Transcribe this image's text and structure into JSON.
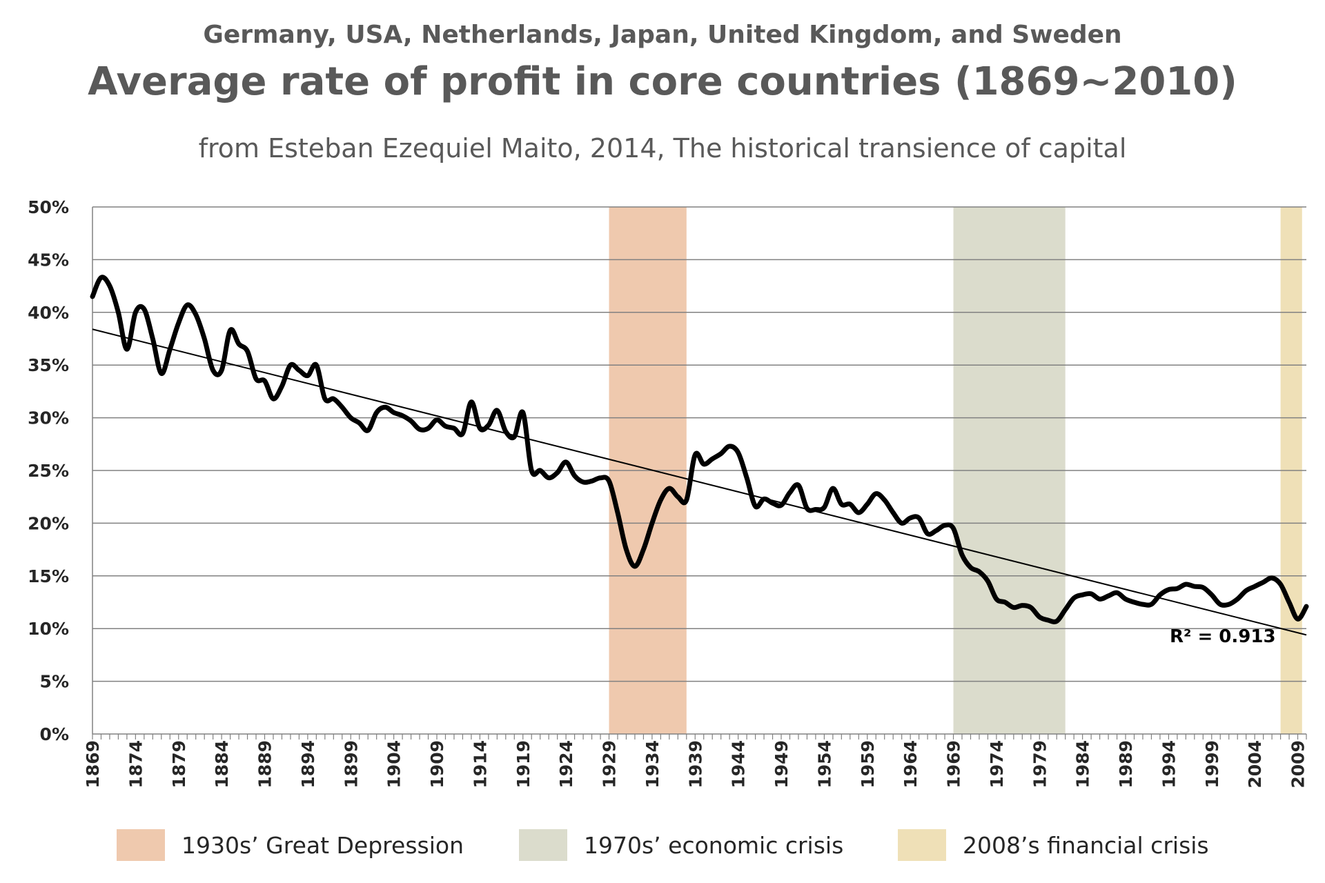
{
  "chart_data": {
    "type": "line",
    "supertitle": "Germany, USA, Netherlands, Japan, United Kingdom, and Sweden",
    "title": "Average rate of profit in core countries (1869~2010)",
    "subtitle": "from Esteban Ezequiel Maito, 2014, The historical transience of capital",
    "xlim": [
      1869,
      2010
    ],
    "ylim": [
      0,
      50
    ],
    "ytick_values": [
      0,
      5,
      10,
      15,
      20,
      25,
      30,
      35,
      40,
      45,
      50
    ],
    "ytick_labels": [
      "0%",
      "5%",
      "10%",
      "15%",
      "20%",
      "25%",
      "30%",
      "35%",
      "40%",
      "45%",
      "50%"
    ],
    "xtick_values": [
      1869,
      1874,
      1879,
      1884,
      1889,
      1894,
      1899,
      1904,
      1909,
      1914,
      1919,
      1924,
      1929,
      1934,
      1939,
      1944,
      1949,
      1954,
      1959,
      1964,
      1969,
      1974,
      1979,
      1984,
      1989,
      1994,
      1999,
      2004,
      2009
    ],
    "xtick_labels": [
      "1869",
      "1874",
      "1879",
      "1884",
      "1889",
      "1894",
      "1899",
      "1904",
      "1909",
      "1914",
      "1919",
      "1924",
      "1929",
      "1934",
      "1939",
      "1944",
      "1949",
      "1954",
      "1959",
      "1964",
      "1969",
      "1974",
      "1979",
      "1984",
      "1989",
      "1994",
      "1999",
      "2004",
      "2009"
    ],
    "grid": "horizontal",
    "legend_position": "bottom",
    "series": [
      {
        "color": "#000000",
        "x": [
          1869,
          1870,
          1871,
          1872,
          1873,
          1874,
          1875,
          1876,
          1877,
          1878,
          1879,
          1880,
          1881,
          1882,
          1883,
          1884,
          1885,
          1886,
          1887,
          1888,
          1889,
          1890,
          1891,
          1892,
          1893,
          1894,
          1895,
          1896,
          1897,
          1898,
          1899,
          1900,
          1901,
          1902,
          1903,
          1904,
          1905,
          1906,
          1907,
          1908,
          1909,
          1910,
          1911,
          1912,
          1913,
          1914,
          1915,
          1916,
          1917,
          1918,
          1919,
          1920,
          1921,
          1922,
          1923,
          1924,
          1925,
          1926,
          1927,
          1928,
          1929,
          1930,
          1931,
          1932,
          1933,
          1934,
          1935,
          1936,
          1937,
          1938,
          1939,
          1940,
          1941,
          1942,
          1943,
          1944,
          1945,
          1946,
          1947,
          1948,
          1949,
          1950,
          1951,
          1952,
          1953,
          1954,
          1955,
          1956,
          1957,
          1958,
          1959,
          1960,
          1961,
          1962,
          1963,
          1964,
          1965,
          1966,
          1967,
          1968,
          1969,
          1970,
          1971,
          1972,
          1973,
          1974,
          1975,
          1976,
          1977,
          1978,
          1979,
          1980,
          1981,
          1982,
          1983,
          1984,
          1985,
          1986,
          1987,
          1988,
          1989,
          1990,
          1991,
          1992,
          1993,
          1994,
          1995,
          1996,
          1997,
          1998,
          1999,
          2000,
          2001,
          2002,
          2003,
          2004,
          2005,
          2006,
          2007,
          2008,
          2009,
          2010
        ],
        "y": [
          41.5,
          43.3,
          42.5,
          40.0,
          36.5,
          40.0,
          40.3,
          37.5,
          34.2,
          36.5,
          39.0,
          40.7,
          39.8,
          37.5,
          34.5,
          34.5,
          38.3,
          37.0,
          36.3,
          33.7,
          33.5,
          31.8,
          33.0,
          35.0,
          34.5,
          34.0,
          35.0,
          31.8,
          31.8,
          31.0,
          30.0,
          29.5,
          28.8,
          30.5,
          31.0,
          30.5,
          30.2,
          29.7,
          28.9,
          29.0,
          29.8,
          29.2,
          29.0,
          28.5,
          31.5,
          29.0,
          29.3,
          30.7,
          28.7,
          28.2,
          30.5,
          25.0,
          25.0,
          24.3,
          24.8,
          25.8,
          24.5,
          23.9,
          24.0,
          24.3,
          24.0,
          21.0,
          17.5,
          15.9,
          17.5,
          20.0,
          22.2,
          23.3,
          22.5,
          22.2,
          26.5,
          25.6,
          26.1,
          26.6,
          27.3,
          26.7,
          24.3,
          21.6,
          22.3,
          21.9,
          21.7,
          22.9,
          23.6,
          21.4,
          21.3,
          21.5,
          23.3,
          21.8,
          21.8,
          21.0,
          21.8,
          22.8,
          22.2,
          21.0,
          20.0,
          20.5,
          20.5,
          19.0,
          19.3,
          19.8,
          19.5,
          17.0,
          15.8,
          15.4,
          14.5,
          12.8,
          12.5,
          12.0,
          12.2,
          12.0,
          11.1,
          10.8,
          10.7,
          11.8,
          12.9,
          13.2,
          13.3,
          12.8,
          13.1,
          13.4,
          12.8,
          12.5,
          12.3,
          12.3,
          13.2,
          13.7,
          13.8,
          14.2,
          14.0,
          13.9,
          13.2,
          12.3,
          12.3,
          12.8,
          13.6,
          14.0,
          14.4,
          14.8,
          14.2,
          12.5,
          10.9,
          12.1
        ]
      }
    ],
    "trendline": {
      "x": [
        1869,
        2010
      ],
      "y": [
        38.4,
        9.4
      ],
      "r2_label": "R² = 0.913"
    },
    "shaded_periods": [
      {
        "label": "1930s’ Great Depression",
        "x_start": 1929,
        "x_end": 1938,
        "color": "#efc9ae"
      },
      {
        "label": "1970s’ economic crisis",
        "x_start": 1969,
        "x_end": 1982,
        "color": "#dbdccc"
      },
      {
        "label": "2008’s financial crisis",
        "x_start": 2007,
        "x_end": 2009.5,
        "color": "#efe0b7"
      }
    ]
  }
}
